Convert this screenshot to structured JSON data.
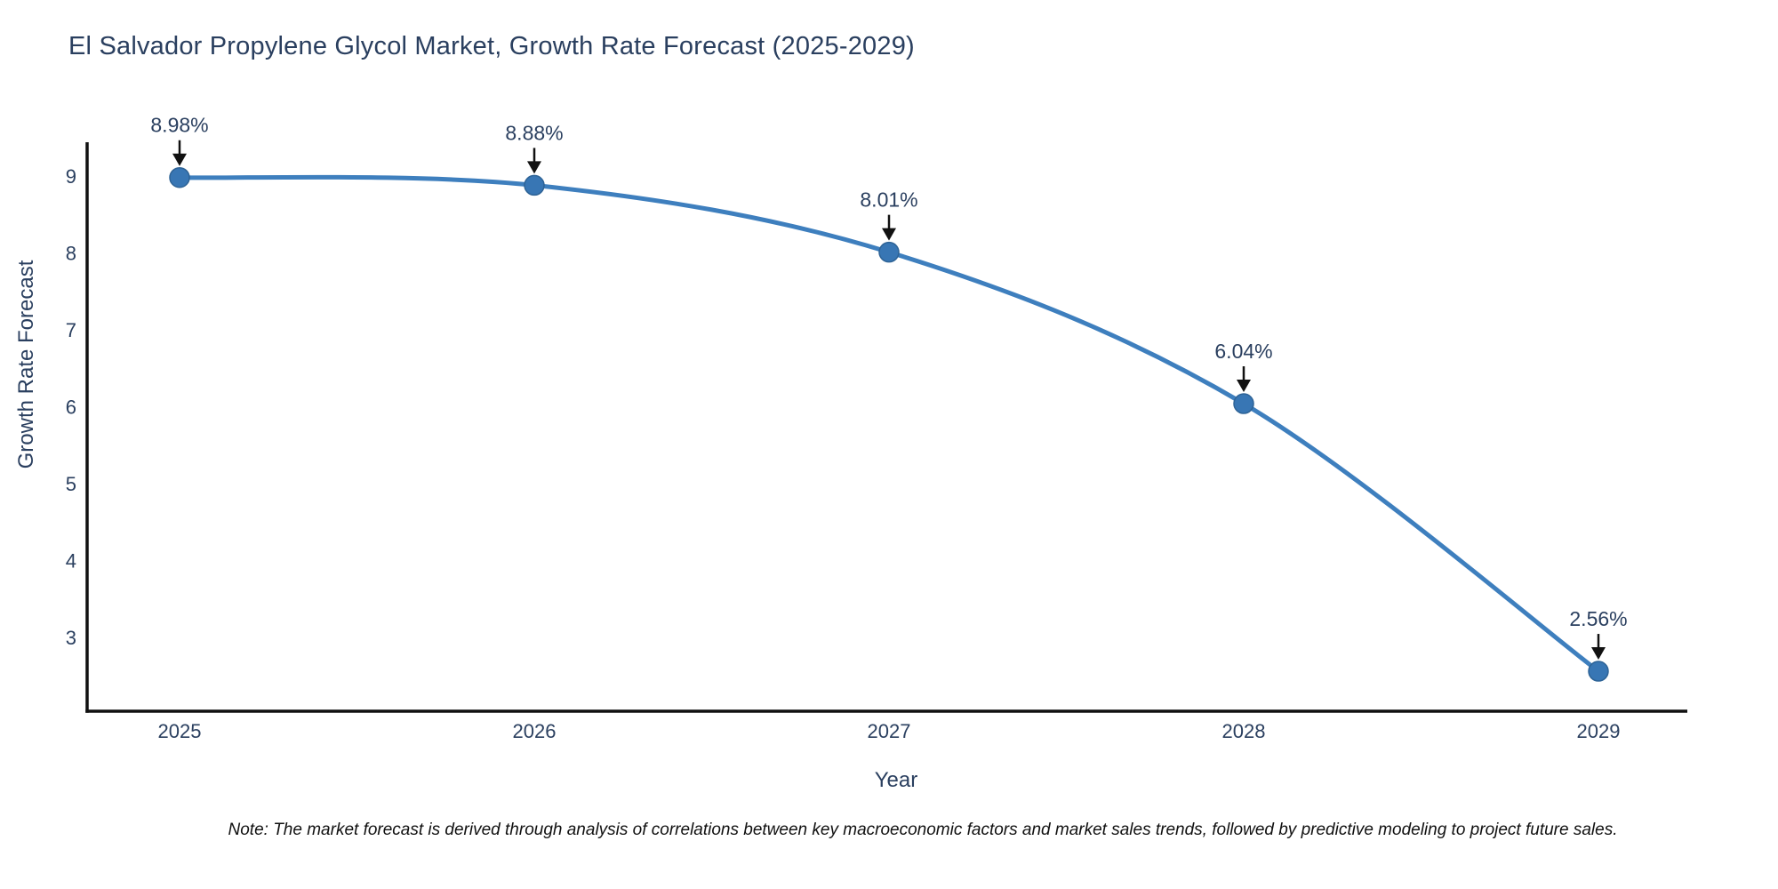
{
  "chart": {
    "title": "El Salvador Propylene Glycol Market, Growth Rate Forecast (2025-2029)",
    "xlabel": "Year",
    "ylabel": "Growth Rate Forecast",
    "note": "Note: The market forecast is derived through analysis of correlations between key macroeconomic factors and market sales trends, followed by predictive modeling to project future sales.",
    "colors": {
      "title_text": "#2a3f5f",
      "tick_text": "#2a3f5f",
      "note_text": "#111111",
      "axis_line": "#101010",
      "line": "#3E7FBE",
      "marker": "#3876B4",
      "marker_edge": "#2E6396",
      "annotation_arrow": "#111111",
      "background": "#ffffff"
    }
  },
  "chart_data": {
    "type": "line",
    "line_shape": "spline",
    "title": "El Salvador Propylene Glycol Market, Growth Rate Forecast (2025-2029)",
    "xlabel": "Year",
    "ylabel": "Growth Rate Forecast",
    "x": [
      2025,
      2026,
      2027,
      2028,
      2029
    ],
    "y": [
      8.98,
      8.88,
      8.01,
      6.04,
      2.56
    ],
    "point_labels": [
      "8.98%",
      "8.88%",
      "8.01%",
      "6.04%",
      "2.56%"
    ],
    "series_name": "Growth Rate Forecast",
    "xticks": [
      "2025",
      "2026",
      "2027",
      "2028",
      "2029"
    ],
    "yticks": [
      3,
      4,
      5,
      6,
      7,
      8,
      9
    ],
    "xlim": [
      2024.74,
      2029.25
    ],
    "ylim": [
      2.04,
      9.44
    ],
    "grid": false,
    "legend": false,
    "markers": true,
    "annotations": "value labels with downward arrows above each point"
  }
}
